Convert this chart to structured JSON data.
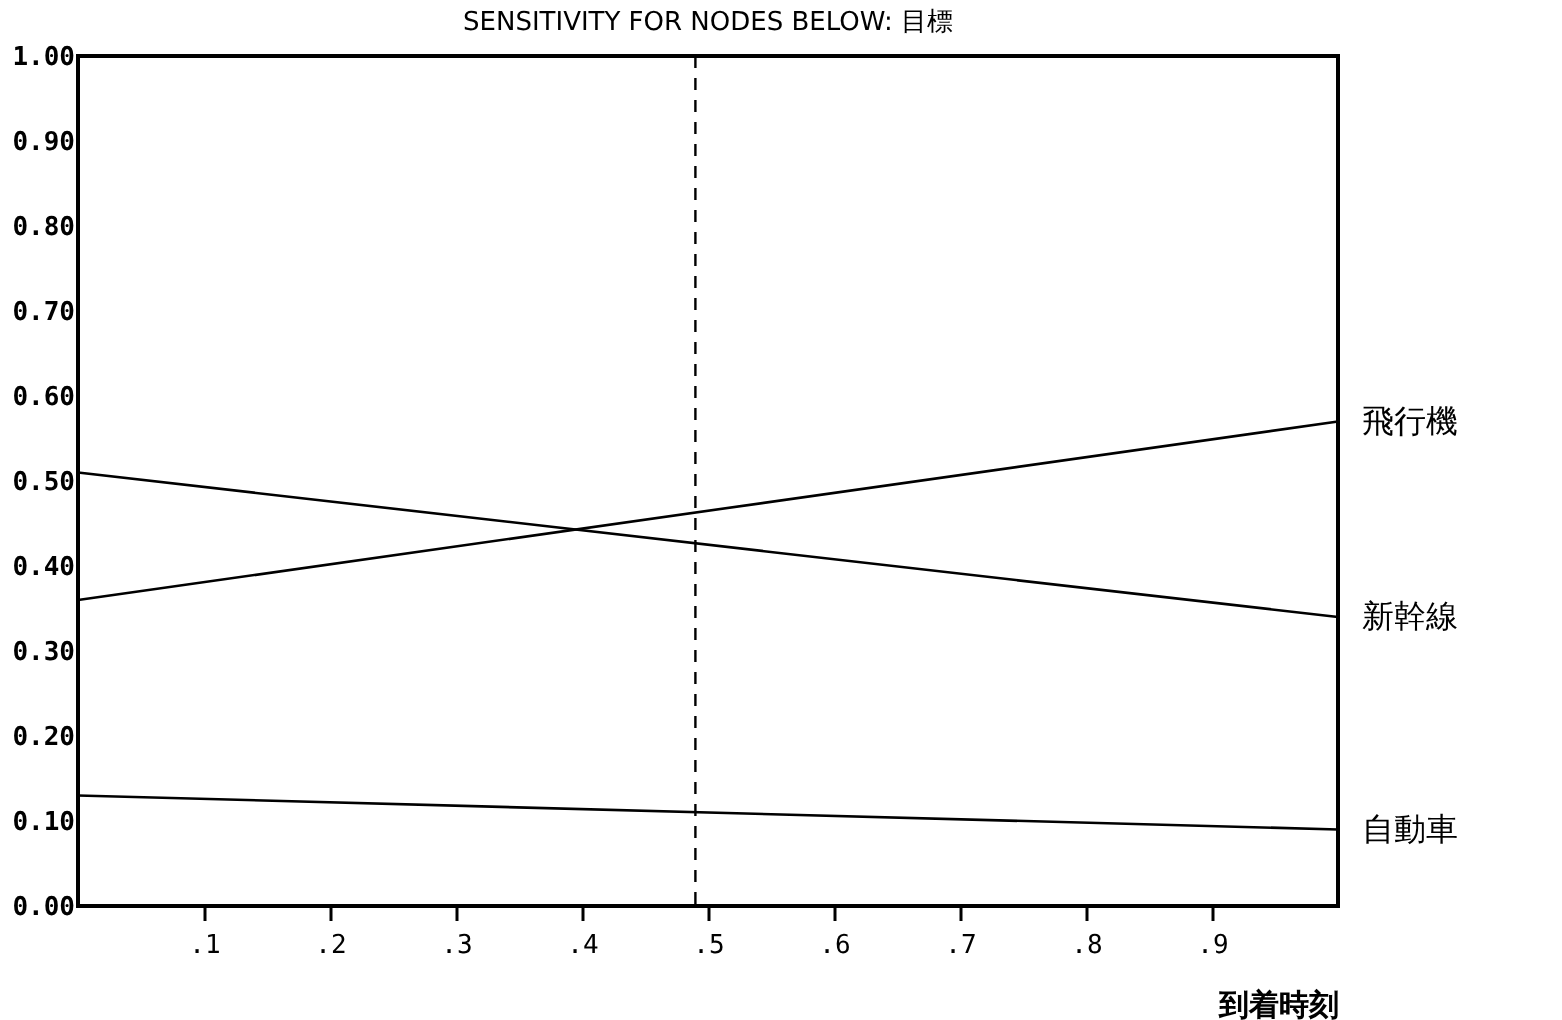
{
  "chart_data": {
    "type": "line",
    "title": "SENSITIVITY FOR NODES BELOW: 目標",
    "xlabel": "到着時刻",
    "x": [
      0,
      1
    ],
    "series": [
      {
        "name": "飛行機",
        "color": "#000000",
        "values": [
          0.36,
          0.57
        ]
      },
      {
        "name": "新幹線",
        "color": "#000000",
        "values": [
          0.51,
          0.34
        ]
      },
      {
        "name": "自動車",
        "color": "#000000",
        "values": [
          0.13,
          0.09
        ]
      }
    ],
    "xlim": [
      0,
      1
    ],
    "xticks": [
      {
        "value": 0.1,
        "label": ".1"
      },
      {
        "value": 0.2,
        "label": ".2"
      },
      {
        "value": 0.3,
        "label": ".3"
      },
      {
        "value": 0.4,
        "label": ".4"
      },
      {
        "value": 0.5,
        "label": ".5"
      },
      {
        "value": 0.6,
        "label": ".6"
      },
      {
        "value": 0.7,
        "label": ".7"
      },
      {
        "value": 0.8,
        "label": ".8"
      },
      {
        "value": 0.9,
        "label": ".9"
      }
    ],
    "ylim": [
      0,
      1
    ],
    "yticks": [
      {
        "value": 0,
        "label": "0.00"
      },
      {
        "value": 0.1,
        "label": "0.10"
      },
      {
        "value": 0.2,
        "label": "0.20"
      },
      {
        "value": 0.3,
        "label": "0.30"
      },
      {
        "value": 0.4,
        "label": "0.40"
      },
      {
        "value": 0.5,
        "label": "0.50"
      },
      {
        "value": 0.6,
        "label": "0.60"
      },
      {
        "value": 0.7,
        "label": "0.70"
      },
      {
        "value": 0.8,
        "label": "0.80"
      },
      {
        "value": 0.9,
        "label": "0.90"
      },
      {
        "value": 1,
        "label": "1.00"
      }
    ],
    "ref_lines": [
      {
        "axis": "x",
        "value": 0.49,
        "line_style": "dashed"
      }
    ],
    "grid": false,
    "marker": "none",
    "line_style": "solid"
  }
}
